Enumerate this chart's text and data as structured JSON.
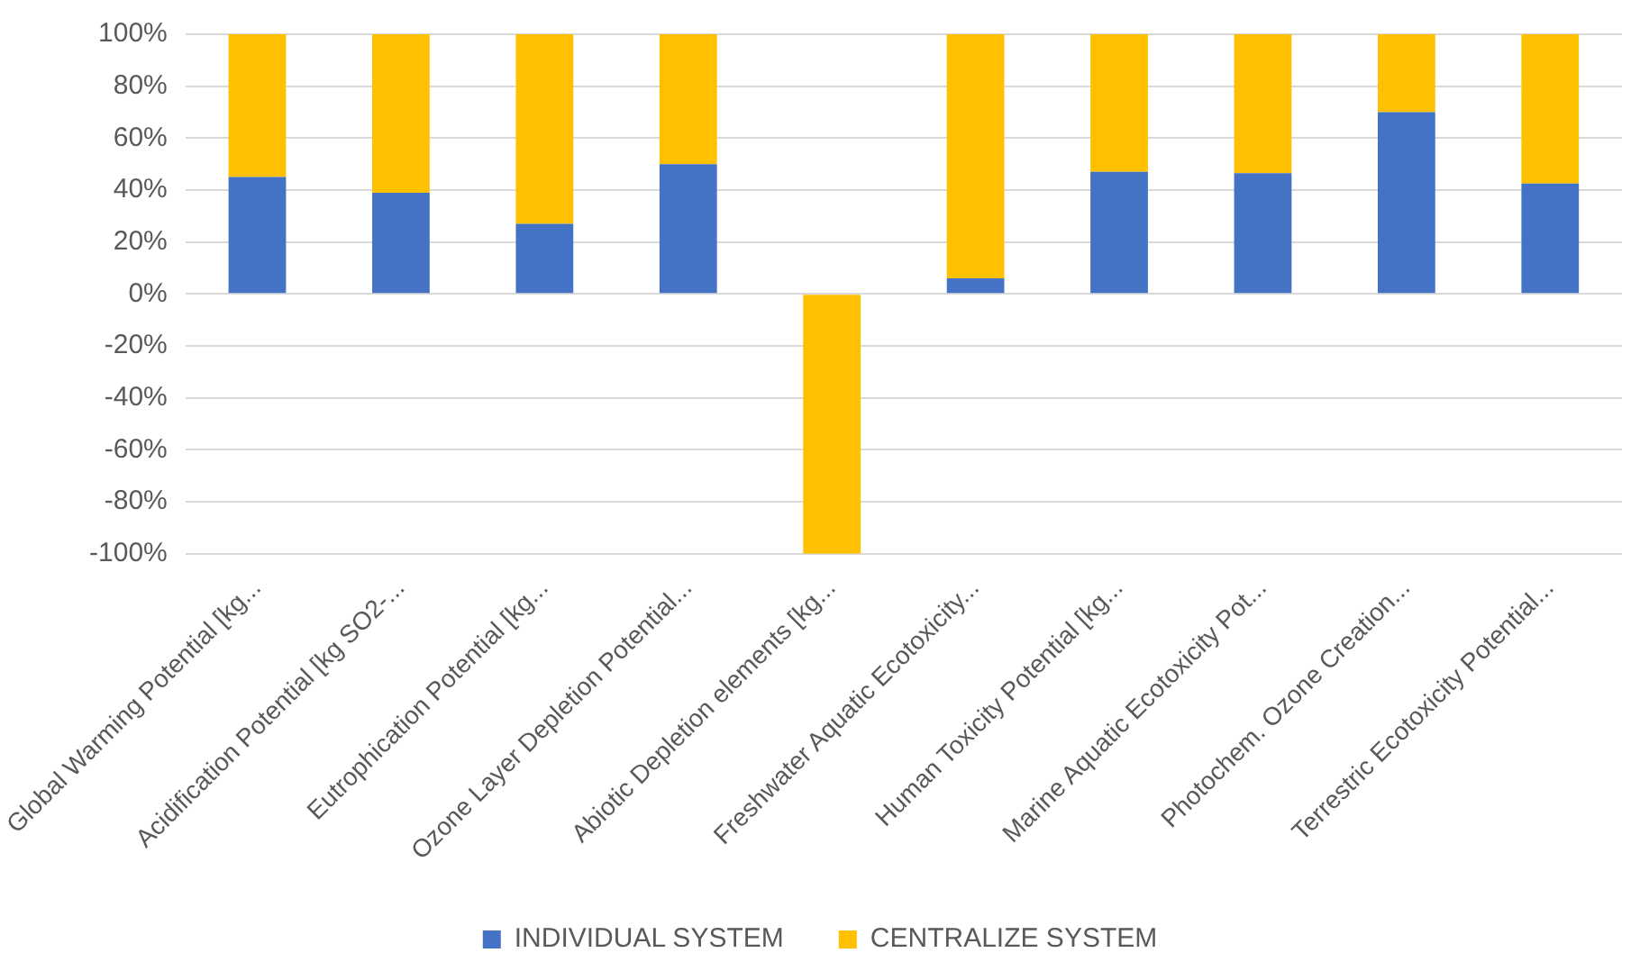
{
  "chart_data": {
    "type": "bar",
    "stacked": true,
    "categories": [
      "Global Warming Potential [kg...",
      "Acidification Potential [kg SO2-...",
      "Eutrophication Potential [kg...",
      "Ozone Layer Depletion Potential...",
      "Abiotic Depletion elements [kg...",
      "Freshwater Aquatic Ecotoxicity...",
      "Human Toxicity Potential [kg...",
      "Marine Aquatic Ecotoxicity Pot...",
      "Photochem. Ozone Creation...",
      "Terrestric Ecotoxicity Potential..."
    ],
    "series": [
      {
        "name": "INDIVIDUAL SYSTEM",
        "color": "#4472c4",
        "values": [
          45,
          39,
          27,
          50,
          0,
          6,
          47,
          46.5,
          70,
          42.5
        ]
      },
      {
        "name": "CENTRALIZE SYSTEM",
        "color": "#ffc000",
        "values": [
          55,
          61,
          73,
          50,
          -100,
          94,
          53,
          53.5,
          30,
          57.5
        ]
      }
    ],
    "ylim": [
      -100,
      100
    ],
    "yticks": [
      {
        "value": -100,
        "label": "-100%"
      },
      {
        "value": -80,
        "label": "-80%"
      },
      {
        "value": -60,
        "label": "-60%"
      },
      {
        "value": -40,
        "label": "-40%"
      },
      {
        "value": -20,
        "label": "-20%"
      },
      {
        "value": 0,
        "label": "0%"
      },
      {
        "value": 20,
        "label": "20%"
      },
      {
        "value": 40,
        "label": "40%"
      },
      {
        "value": 60,
        "label": "60%"
      },
      {
        "value": 80,
        "label": "80%"
      },
      {
        "value": 100,
        "label": "100%"
      }
    ],
    "grid": "y",
    "legend": "bottom"
  }
}
